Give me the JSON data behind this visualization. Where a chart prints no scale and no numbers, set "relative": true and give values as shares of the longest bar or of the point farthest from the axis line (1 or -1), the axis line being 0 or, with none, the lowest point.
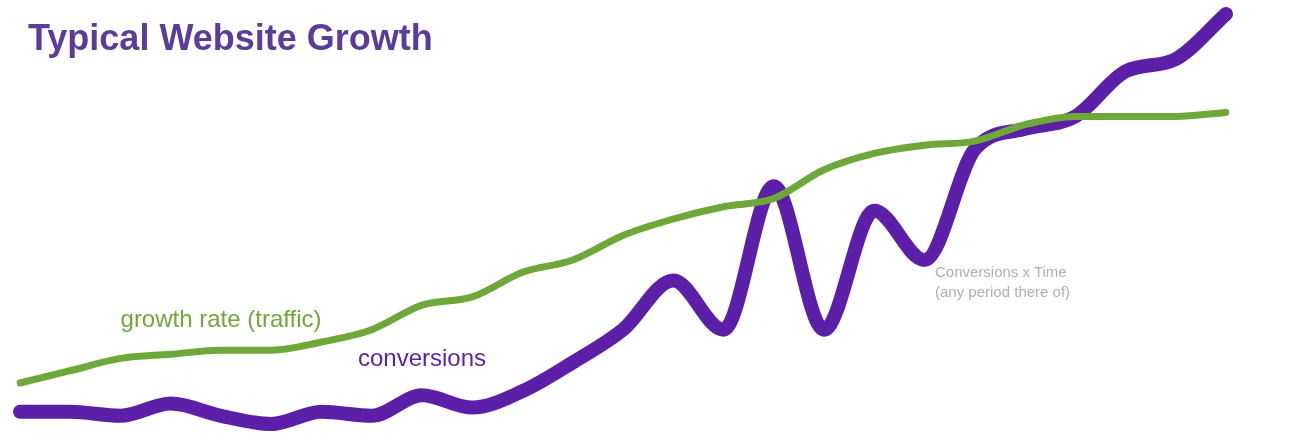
{
  "chart_data": {
    "type": "line",
    "title": "Typical Website Growth",
    "relative": true,
    "categories": [
      null,
      null,
      null,
      null,
      null,
      null,
      null,
      null,
      null,
      null,
      null,
      null,
      null,
      null,
      null,
      null,
      null,
      null,
      null,
      null,
      null,
      null,
      null,
      null,
      null
    ],
    "series": [
      {
        "name": "growth rate (traffic)",
        "color": "#6ea83a",
        "values": [
          0.1,
          0.13,
          0.16,
          0.17,
          0.18,
          0.18,
          0.2,
          0.23,
          0.29,
          0.31,
          0.37,
          0.4,
          0.46,
          0.5,
          0.53,
          0.55,
          0.62,
          0.66,
          0.68,
          0.69,
          0.73,
          0.75,
          0.75,
          0.75,
          0.76
        ]
      },
      {
        "name": "conversions",
        "color": "#5b1fa8",
        "values": [
          0.03,
          0.03,
          0.02,
          0.05,
          0.02,
          0,
          0.03,
          0.02,
          0.07,
          0.04,
          0.08,
          0.15,
          0.23,
          0.35,
          0.23,
          0.58,
          0.23,
          0.52,
          0.4,
          0.67,
          0.72,
          0.75,
          0.86,
          0.89,
          1
        ]
      }
    ],
    "annotations": [
      "Conversions x Time\n(any period there of)"
    ]
  }
}
